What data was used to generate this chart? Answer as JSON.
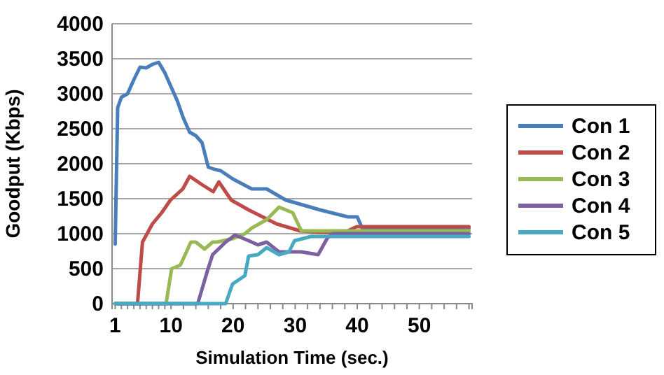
{
  "chart_data": {
    "type": "line",
    "xlabel": "Simulation Time (sec.)",
    "ylabel": "Goodput (Kbps)",
    "xlim": [
      0.5,
      58.5
    ],
    "ylim": [
      0,
      4000
    ],
    "yticks": [
      0,
      500,
      1000,
      1500,
      2000,
      2500,
      3000,
      3500,
      4000
    ],
    "xticks": [
      1,
      {
        "value": 2,
        "label": null
      },
      {
        "value": 3,
        "label": null
      },
      {
        "value": 4,
        "label": null
      },
      {
        "value": 5,
        "label": null
      },
      {
        "value": 6,
        "label": null
      },
      {
        "value": 7,
        "label": null
      },
      {
        "value": 8,
        "label": null
      },
      {
        "value": 9,
        "label": null
      },
      10,
      {
        "value": 12,
        "label": null
      },
      {
        "value": 14,
        "label": null
      },
      {
        "value": 16,
        "label": null
      },
      {
        "value": 18,
        "label": null
      },
      20,
      {
        "value": 22,
        "label": null
      },
      {
        "value": 24,
        "label": null
      },
      {
        "value": 26,
        "label": null
      },
      {
        "value": 28,
        "label": null
      },
      30,
      {
        "value": 32,
        "label": null
      },
      {
        "value": 34,
        "label": null
      },
      {
        "value": 36,
        "label": null
      },
      {
        "value": 38,
        "label": null
      },
      40,
      {
        "value": 42,
        "label": null
      },
      {
        "value": 44,
        "label": null
      },
      {
        "value": 46,
        "label": null
      },
      {
        "value": 48,
        "label": null
      },
      50,
      {
        "value": 52,
        "label": null
      },
      {
        "value": 54,
        "label": null
      },
      {
        "value": 56,
        "label": null
      },
      {
        "value": 58,
        "label": null
      }
    ],
    "grid": "y",
    "legend": "right",
    "marker": "none",
    "line_style": "solid",
    "series": [
      {
        "name": "Con 1",
        "color": "#4a7ebb",
        "x": [
          1,
          1.4,
          2,
          3,
          4,
          5,
          6,
          7,
          8,
          9,
          10,
          11,
          12,
          13,
          14,
          15,
          16,
          17,
          18,
          20,
          23,
          25.4,
          28.5,
          34,
          38.5,
          40,
          40.8,
          58
        ],
        "values": [
          850,
          2800,
          2950,
          3000,
          3200,
          3380,
          3370,
          3420,
          3450,
          3300,
          3100,
          2900,
          2650,
          2450,
          2400,
          2300,
          1950,
          1920,
          1900,
          1780,
          1640,
          1640,
          1480,
          1340,
          1240,
          1240,
          1080,
          1080
        ]
      },
      {
        "name": "Con 2",
        "color": "#be4b48",
        "x": [
          1,
          4.6,
          5.4,
          7,
          8.5,
          9.9,
          11.9,
          13,
          15,
          16.8,
          17.7,
          19.7,
          22.5,
          27,
          30.8,
          34,
          38,
          39.9,
          58
        ],
        "values": [
          0,
          0,
          880,
          1140,
          1300,
          1480,
          1640,
          1820,
          1700,
          1600,
          1740,
          1480,
          1340,
          1140,
          1040,
          1020,
          1020,
          1100,
          1100
        ]
      },
      {
        "name": "Con 3",
        "color": "#98b954",
        "x": [
          1,
          9.2,
          10.1,
          11.5,
          13.2,
          14,
          15.4,
          16.7,
          17.4,
          20,
          21.9,
          23,
          25.4,
          27.4,
          29.6,
          31,
          35,
          58
        ],
        "values": [
          0,
          0,
          500,
          550,
          880,
          880,
          780,
          880,
          880,
          930,
          1000,
          1080,
          1200,
          1380,
          1300,
          1040,
          1040,
          1040
        ]
      },
      {
        "name": "Con 4",
        "color": "#7d60a0",
        "x": [
          1,
          14.3,
          15.9,
          16.7,
          18.8,
          20.3,
          22.5,
          24,
          25.4,
          27.4,
          31,
          33.7,
          35.2,
          36,
          58
        ],
        "values": [
          0,
          0,
          480,
          700,
          880,
          980,
          900,
          840,
          880,
          740,
          740,
          700,
          940,
          1000,
          1000
        ]
      },
      {
        "name": "Con 5",
        "color": "#46aac5",
        "x": [
          1,
          18.8,
          19.9,
          20.9,
          21.9,
          22.5,
          24,
          25.4,
          27.4,
          29,
          29.9,
          31.7,
          32.5,
          58
        ],
        "values": [
          0,
          0,
          280,
          340,
          400,
          680,
          700,
          800,
          700,
          740,
          900,
          940,
          960,
          960
        ]
      }
    ]
  }
}
